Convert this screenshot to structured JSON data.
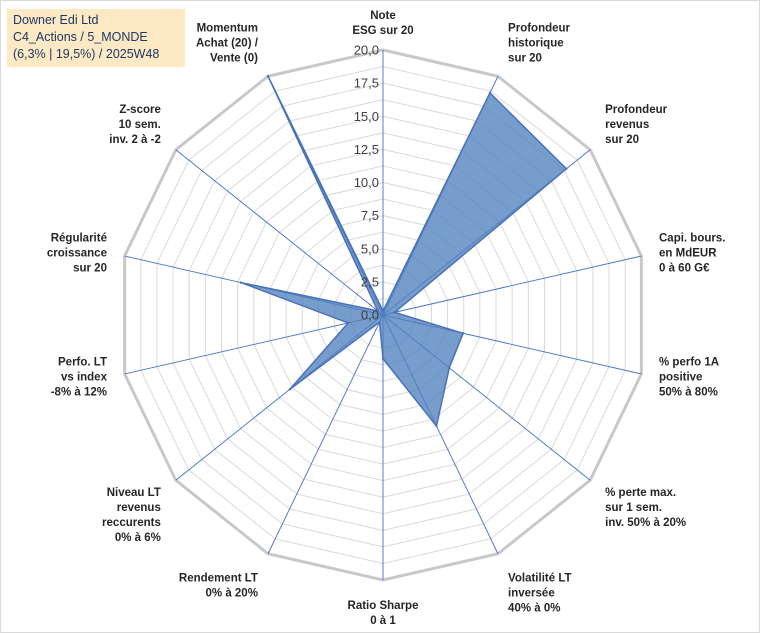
{
  "title_lines": [
    "Downer Edi Ltd",
    "C4_Actions / 5_MONDE",
    "(6,3% | 19,5%) / 2025W48"
  ],
  "chart_data": {
    "type": "radar",
    "series": [
      {
        "name": "Downer Edi Ltd",
        "color": "#4f81bd",
        "values": [
          0.3,
          18.6,
          17.7,
          0.9,
          6.2,
          6.4,
          9.3,
          3.3,
          0.6,
          9.0,
          2.7,
          11.0,
          0.5,
          20.0
        ]
      }
    ],
    "categories": [
      [
        "Note",
        "ESG sur 20"
      ],
      [
        "Profondeur",
        "historique",
        "sur 20"
      ],
      [
        "Profondeur",
        "revenus",
        "sur 20"
      ],
      [
        "Capi. bours.",
        "en MdEUR",
        "0 à 60 G€"
      ],
      [
        "% perfo 1A",
        "positive",
        "50% à 80%"
      ],
      [
        "% perte max.",
        "sur 1 sem.",
        "inv. 50% à 20%"
      ],
      [
        "Volatilité LT",
        "inversée",
        "40% à 0%"
      ],
      [
        "Ratio Sharpe",
        "0 à 1"
      ],
      [
        "Rendement LT",
        "0% à 20%"
      ],
      [
        "Niveau LT",
        "revenus",
        "reccurents",
        "0% à 6%"
      ],
      [
        "Perfo. LT",
        "vs index",
        "-8% à 12%"
      ],
      [
        "Régularité",
        "croissance",
        "sur 20"
      ],
      [
        "Z-score",
        "10 sem.",
        "inv. 2 à -2"
      ],
      [
        "Momentum",
        "Achat (20) /",
        "Vente (0)"
      ]
    ],
    "rmin": 0,
    "rmax": 20,
    "tick_step": 2.5,
    "tick_labels": [
      "0,0",
      "2,5",
      "5,0",
      "7,5",
      "10,0",
      "12,5",
      "15,0",
      "17,5",
      "20,0"
    ],
    "grid_step": 1.25,
    "colors": {
      "fill": "#4f81bd",
      "stroke": "#4a72b8",
      "grid": "#d9d9d9",
      "outer": "#c8c8c8",
      "spoke": "#4472c4"
    }
  }
}
